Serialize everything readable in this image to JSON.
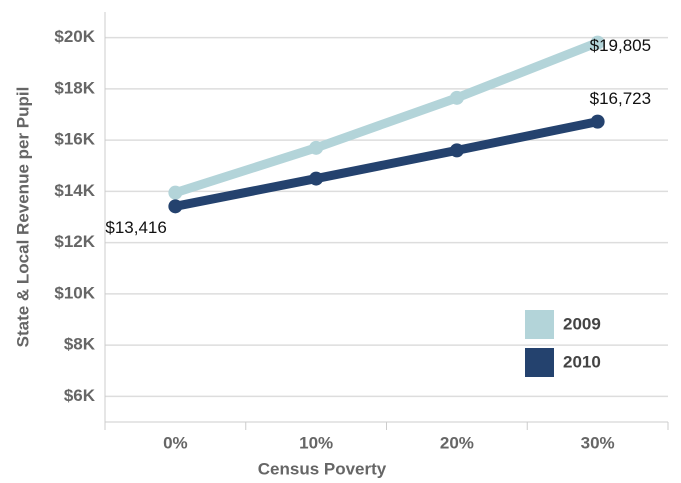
{
  "chart_data": {
    "type": "line",
    "x_label": "Census Poverty",
    "y_label": "State & Local Revenue per Pupil",
    "categories": [
      "0%",
      "10%",
      "20%",
      "30%"
    ],
    "series": [
      {
        "name": "2009",
        "color": "#b3d4d9",
        "values": [
          13950,
          15700,
          17650,
          19805
        ],
        "value_labels": [
          null,
          null,
          null,
          "$19,805"
        ]
      },
      {
        "name": "2010",
        "color": "#24426e",
        "values": [
          13416,
          14500,
          15600,
          16723
        ],
        "value_labels": [
          "$13,416",
          null,
          null,
          "$16,723"
        ]
      }
    ],
    "ylim": [
      5000,
      21000
    ],
    "yticks": [
      {
        "value": 6000,
        "label": "$6K"
      },
      {
        "value": 8000,
        "label": "$8K"
      },
      {
        "value": 10000,
        "label": "$10K"
      },
      {
        "value": 12000,
        "label": "$12K"
      },
      {
        "value": 14000,
        "label": "$14K"
      },
      {
        "value": 16000,
        "label": "$16K"
      },
      {
        "value": 18000,
        "label": "$18K"
      },
      {
        "value": 20000,
        "label": "$20K"
      }
    ],
    "grid": true,
    "legend": "lower right"
  }
}
